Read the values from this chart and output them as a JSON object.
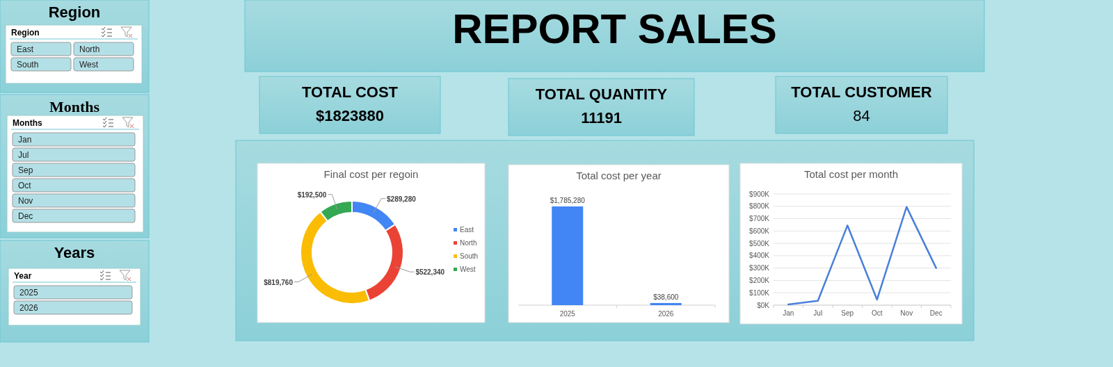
{
  "chart_data": [
    {
      "type": "other",
      "title": "Region",
      "annotations": [
        "Region",
        "East",
        "North",
        "South",
        "West"
      ]
    },
    {
      "type": "other",
      "title": "Months",
      "annotations": [
        "Months",
        "Jan",
        "Jul",
        "Sep",
        "Oct",
        "Nov",
        "Dec"
      ]
    },
    {
      "type": "other",
      "title": "Years",
      "annotations": [
        "Year",
        "2025",
        "2026"
      ]
    },
    {
      "type": "other",
      "title": "REPORT SALES"
    },
    {
      "type": "other",
      "title": "TOTAL COST",
      "annotations": [
        "$1823880"
      ]
    },
    {
      "type": "other",
      "title": "TOTAL QUANTITY",
      "annotations": [
        "11191"
      ]
    },
    {
      "type": "other",
      "title": "TOTAL CUSTOMER",
      "annotations": [
        "84"
      ]
    },
    {
      "type": "donut",
      "title": "Final cost per regoin",
      "categories": [
        "East",
        "North",
        "South",
        "West"
      ],
      "values": [
        289280,
        522340,
        819760,
        192500
      ],
      "colors": [
        "#4285f4",
        "#ea4335",
        "#fbbc04",
        "#34a853"
      ],
      "value_labels": [
        "$289,280",
        "$522,340",
        "$819,760",
        "$192,500"
      ],
      "legend": "right"
    },
    {
      "type": "bar",
      "title": "Total cost per year",
      "categories": [
        "2025",
        "2026"
      ],
      "values": [
        1785280,
        38600
      ],
      "color": "#4285f4",
      "value_labels": [
        "$1,785,280",
        "$38,600"
      ]
    },
    {
      "type": "line",
      "title": "Total cost per month",
      "categories": [
        "Jan",
        "Jul",
        "Sep",
        "Oct",
        "Nov",
        "Dec"
      ],
      "values": [
        5000,
        35000,
        645000,
        45000,
        795000,
        300000
      ],
      "color": "#4a7fd9",
      "ylim": [
        0,
        900000
      ],
      "yticks": [
        {
          "value": 0,
          "label": "$0K"
        },
        {
          "value": 100000,
          "label": "$100K"
        },
        {
          "value": 200000,
          "label": "$200K"
        },
        {
          "value": 300000,
          "label": "$300K"
        },
        {
          "value": 400000,
          "label": "$400K"
        },
        {
          "value": 500000,
          "label": "$500K"
        },
        {
          "value": 600000,
          "label": "$600K"
        },
        {
          "value": 700000,
          "label": "$700K"
        },
        {
          "value": 800000,
          "label": "$800K"
        },
        {
          "value": 900000,
          "label": "$900K"
        }
      ],
      "grid": "y",
      "marker": "none"
    }
  ]
}
